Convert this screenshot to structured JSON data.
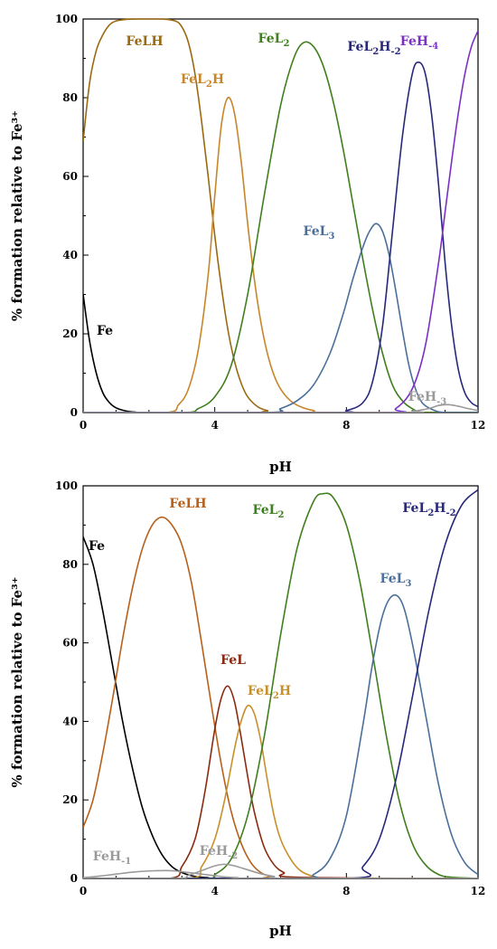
{
  "chart_data": [
    {
      "type": "line",
      "xlabel": "pH",
      "ylabel": "% formation relative to Fe³⁺",
      "xlim": [
        0,
        12
      ],
      "ylim": [
        0,
        100
      ],
      "xticks": [
        "0",
        "4",
        "8",
        "12"
      ],
      "yticks": [
        "0",
        "20",
        "40",
        "60",
        "80",
        "100"
      ],
      "grid": false,
      "series": [
        {
          "name": "Fe",
          "label_parts": [
            {
              "t": "Fe"
            }
          ],
          "color": "#000000",
          "x": [
            0,
            0.2,
            0.4,
            0.6,
            0.8,
            1.0,
            1.3,
            1.6,
            2.0,
            12
          ],
          "y": [
            30,
            18,
            10,
            5,
            2.5,
            1.2,
            0.4,
            0.1,
            0,
            0
          ]
        },
        {
          "name": "FeLH",
          "label_parts": [
            {
              "t": "FeLH"
            }
          ],
          "color": "#9a6a10",
          "x": [
            0,
            0.2,
            0.4,
            0.6,
            0.8,
            1.0,
            1.3,
            1.6,
            2.0,
            2.4,
            2.8,
            3.0,
            3.2,
            3.4,
            3.6,
            3.8,
            4.0,
            4.2,
            4.4,
            4.6,
            4.8,
            5.0,
            5.3,
            5.6,
            6.0,
            12
          ],
          "y": [
            69,
            84,
            92,
            96,
            98.5,
            99.5,
            99.9,
            100,
            100,
            100,
            99.5,
            98,
            94,
            86,
            74,
            60,
            45,
            32,
            21,
            13,
            7.5,
            4,
            1.5,
            0.5,
            0,
            0
          ]
        },
        {
          "name": "FeL2H",
          "label_parts": [
            {
              "t": "FeL"
            },
            {
              "t": "2",
              "sub": true
            },
            {
              "t": "H"
            }
          ],
          "color": "#c8862a",
          "x": [
            0,
            2.5,
            2.9,
            3.2,
            3.5,
            3.8,
            4.0,
            4.2,
            4.4,
            4.6,
            4.8,
            5.0,
            5.2,
            5.4,
            5.6,
            5.8,
            6.0,
            6.3,
            6.6,
            7.0,
            7.5,
            12
          ],
          "y": [
            0,
            0,
            2,
            6,
            16,
            35,
            55,
            73,
            80,
            76,
            64,
            48,
            34,
            23,
            15,
            9.5,
            6,
            3,
            1.5,
            0.5,
            0,
            0
          ]
        },
        {
          "name": "FeL2",
          "label_parts": [
            {
              "t": "FeL"
            },
            {
              "t": "2",
              "sub": true
            }
          ],
          "color": "#3f7f1e",
          "x": [
            0,
            3.0,
            3.5,
            4.0,
            4.5,
            5.0,
            5.5,
            6.0,
            6.4,
            6.7,
            7.0,
            7.3,
            7.6,
            7.9,
            8.2,
            8.5,
            8.8,
            9.1,
            9.4,
            9.7,
            10.0,
            10.4,
            12
          ],
          "y": [
            0,
            0,
            1,
            4,
            12,
            30,
            55,
            78,
            90,
            94,
            93,
            88,
            79,
            67,
            53,
            39,
            26,
            15,
            7,
            3,
            1,
            0,
            0
          ]
        },
        {
          "name": "FeL3",
          "label_parts": [
            {
              "t": "FeL"
            },
            {
              "t": "3",
              "sub": true
            }
          ],
          "color": "#4a6f9a",
          "x": [
            0,
            5.5,
            6.0,
            6.5,
            7.0,
            7.5,
            7.9,
            8.2,
            8.5,
            8.7,
            8.9,
            9.1,
            9.3,
            9.5,
            9.7,
            9.9,
            10.1,
            10.3,
            10.6,
            11.0,
            12
          ],
          "y": [
            0,
            0,
            1,
            3,
            7,
            15,
            25,
            34,
            42,
            46,
            48,
            46,
            40,
            31,
            21,
            12,
            6,
            2.5,
            0.8,
            0,
            0
          ]
        },
        {
          "name": "FeL2H-2",
          "label_parts": [
            {
              "t": "FeL"
            },
            {
              "t": "2",
              "sub": true
            },
            {
              "t": "H"
            },
            {
              "t": "-2",
              "sub": true
            }
          ],
          "color": "#28287a",
          "x": [
            0,
            7.5,
            8.0,
            8.5,
            8.8,
            9.1,
            9.4,
            9.7,
            10.0,
            10.2,
            10.4,
            10.6,
            10.8,
            11.0,
            11.2,
            11.4,
            11.6,
            11.8,
            12.0
          ],
          "y": [
            0,
            0,
            0.5,
            2.5,
            8,
            22,
            46,
            70,
            86,
            89,
            86,
            75,
            58,
            38,
            22,
            11,
            5,
            2.5,
            1.5
          ]
        },
        {
          "name": "FeH-4",
          "label_parts": [
            {
              "t": "FeH"
            },
            {
              "t": "-4",
              "sub": true
            }
          ],
          "color": "#7b2fc4",
          "x": [
            0,
            9.0,
            9.5,
            10.0,
            10.4,
            10.8,
            11.0,
            11.2,
            11.4,
            11.6,
            11.8,
            12.0
          ],
          "y": [
            0,
            0,
            1,
            6,
            17,
            38,
            51,
            64,
            76,
            86,
            93,
            97
          ]
        },
        {
          "name": "FeH-3",
          "label_parts": [
            {
              "t": "FeH"
            },
            {
              "t": "-3",
              "sub": true
            }
          ],
          "color": "#9a9a9a",
          "x": [
            0,
            9.5,
            10.0,
            10.5,
            10.8,
            11.1,
            11.4,
            11.7,
            12.0
          ],
          "y": [
            0,
            0,
            0.3,
            1,
            1.8,
            2,
            1.6,
            1,
            0.5
          ]
        }
      ]
    },
    {
      "type": "line",
      "xlabel": "pH",
      "ylabel": "% formation relative to Fe³⁺",
      "xlim": [
        0,
        12
      ],
      "ylim": [
        0,
        100
      ],
      "xticks": [
        "0",
        "4",
        "8",
        "12"
      ],
      "yticks": [
        "0",
        "20",
        "40",
        "60",
        "80",
        "100"
      ],
      "grid": false,
      "series": [
        {
          "name": "Fe",
          "label_parts": [
            {
              "t": "Fe"
            }
          ],
          "color": "#000000",
          "x": [
            0,
            0.3,
            0.6,
            0.9,
            1.2,
            1.5,
            1.8,
            2.1,
            2.4,
            2.7,
            3.0,
            3.4,
            3.8,
            4.2,
            12
          ],
          "y": [
            87,
            80,
            68,
            54,
            40,
            28,
            18,
            11,
            6,
            3,
            1.5,
            0.5,
            0.2,
            0,
            0
          ]
        },
        {
          "name": "FeLH",
          "label_parts": [
            {
              "t": "FeLH"
            }
          ],
          "color": "#b8601a",
          "x": [
            0,
            0.3,
            0.6,
            0.9,
            1.2,
            1.5,
            1.8,
            2.1,
            2.4,
            2.7,
            3.0,
            3.3,
            3.6,
            3.9,
            4.2,
            4.5,
            4.8,
            5.1,
            5.4,
            5.7,
            6.0,
            12
          ],
          "y": [
            13,
            20,
            32,
            46,
            61,
            74,
            84,
            90,
            92,
            90,
            85,
            75,
            60,
            44,
            29,
            17,
            9,
            4,
            1.5,
            0.5,
            0,
            0
          ]
        },
        {
          "name": "FeL",
          "label_parts": [
            {
              "t": "FeL"
            }
          ],
          "color": "#8a2a10",
          "x": [
            0,
            2.6,
            3.0,
            3.4,
            3.7,
            4.0,
            4.2,
            4.4,
            4.6,
            4.8,
            5.0,
            5.2,
            5.5,
            5.8,
            6.1,
            6.5,
            12
          ],
          "y": [
            0,
            0,
            3,
            10,
            22,
            38,
            46,
            49,
            45,
            36,
            26,
            17,
            8,
            3.5,
            1.5,
            0.3,
            0
          ]
        },
        {
          "name": "FeL2H",
          "label_parts": [
            {
              "t": "FeL"
            },
            {
              "t": "2",
              "sub": true
            },
            {
              "t": "H"
            }
          ],
          "color": "#c8902a",
          "x": [
            0,
            3.2,
            3.6,
            4.0,
            4.3,
            4.6,
            4.8,
            5.0,
            5.2,
            5.4,
            5.6,
            5.8,
            6.0,
            6.3,
            6.6,
            7.0,
            7.5,
            12
          ],
          "y": [
            0,
            0,
            3,
            10,
            20,
            33,
            40,
            44,
            42,
            35,
            25,
            16,
            10,
            5,
            2,
            0.5,
            0,
            0
          ]
        },
        {
          "name": "FeL2",
          "label_parts": [
            {
              "t": "FeL"
            },
            {
              "t": "2",
              "sub": true
            }
          ],
          "color": "#3f7f1e",
          "x": [
            0,
            3.6,
            4.0,
            4.5,
            5.0,
            5.5,
            6.0,
            6.5,
            7.0,
            7.3,
            7.6,
            8.0,
            8.4,
            8.8,
            9.2,
            9.6,
            10.0,
            10.4,
            10.8,
            11.2,
            12
          ],
          "y": [
            0,
            0,
            1,
            5,
            16,
            36,
            62,
            84,
            96,
            98,
            97,
            90,
            76,
            57,
            37,
            20,
            9,
            3.5,
            1,
            0.3,
            0
          ]
        },
        {
          "name": "FeL3",
          "label_parts": [
            {
              "t": "FeL"
            },
            {
              "t": "3",
              "sub": true
            }
          ],
          "color": "#4a6f9a",
          "x": [
            0,
            6.5,
            7.0,
            7.5,
            8.0,
            8.5,
            8.8,
            9.1,
            9.4,
            9.7,
            10.0,
            10.4,
            10.8,
            11.2,
            11.6,
            12.0
          ],
          "y": [
            0,
            0,
            1,
            5,
            16,
            39,
            55,
            67,
            72,
            70,
            60,
            42,
            24,
            11,
            4,
            1
          ]
        },
        {
          "name": "FeL2H-2",
          "label_parts": [
            {
              "t": "FeL"
            },
            {
              "t": "2",
              "sub": true
            },
            {
              "t": "H"
            },
            {
              "t": "-2",
              "sub": true
            }
          ],
          "color": "#28287a",
          "x": [
            0,
            8.0,
            8.5,
            9.0,
            9.5,
            10.0,
            10.5,
            11.0,
            11.5,
            12.0
          ],
          "y": [
            0,
            0,
            3,
            10,
            25,
            46,
            68,
            85,
            95,
            99
          ]
        },
        {
          "name": "FeH-1",
          "label_parts": [
            {
              "t": "FeH"
            },
            {
              "t": "-1",
              "sub": true
            }
          ],
          "color": "#9a9a9a",
          "x": [
            0,
            0.5,
            1.0,
            1.5,
            2.0,
            2.5,
            2.8,
            3.1,
            3.5,
            3.9,
            4.3,
            4.7,
            5.2,
            12
          ],
          "y": [
            0.2,
            0.6,
            1.1,
            1.6,
            1.9,
            2.0,
            1.9,
            1.6,
            1.2,
            0.8,
            0.4,
            0.2,
            0,
            0
          ]
        },
        {
          "name": "FeH-2",
          "label_parts": [
            {
              "t": "FeH"
            },
            {
              "t": "-2",
              "sub": true
            }
          ],
          "color": "#9a9a9a",
          "x": [
            0,
            2.8,
            3.2,
            3.6,
            4.0,
            4.3,
            4.6,
            5.0,
            5.4,
            5.8,
            6.2,
            12
          ],
          "y": [
            0,
            0,
            0.8,
            2.0,
            3.2,
            3.6,
            3.2,
            2.2,
            1.2,
            0.5,
            0,
            0
          ]
        }
      ]
    }
  ]
}
